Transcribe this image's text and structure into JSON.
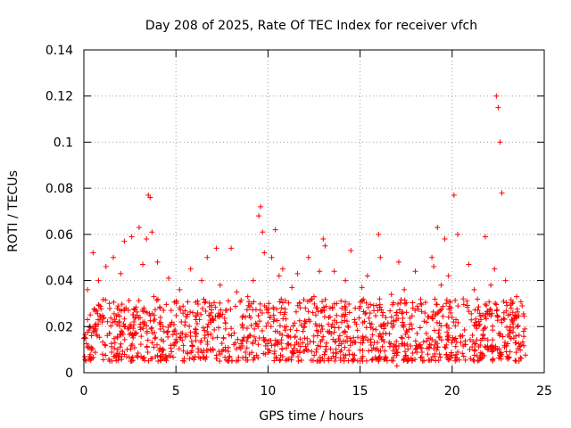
{
  "chart_data": {
    "type": "scatter",
    "title": "Day 208 of 2025, Rate Of TEC Index for receiver vfch",
    "xlabel": "GPS time / hours",
    "ylabel": "ROTI / TECUs",
    "xlim": [
      0,
      25
    ],
    "ylim": [
      0,
      0.14
    ],
    "xticks": [
      0,
      5,
      10,
      15,
      20,
      25
    ],
    "xtick_labels": [
      "0",
      "5",
      "10",
      "15",
      "20",
      "25"
    ],
    "yticks": [
      0,
      0.02,
      0.04,
      0.06,
      0.08,
      0.1,
      0.12,
      0.14
    ],
    "ytick_labels": [
      "0",
      "0.02",
      "0.04",
      "0.06",
      "0.08",
      "0.1",
      "0.12",
      "0.14"
    ],
    "grid": true,
    "marker": "+",
    "color": "#ff0000",
    "series": [
      {
        "name": "ROTI",
        "x": [
          0.1,
          0.2,
          0.3,
          0.5,
          0.6,
          0.8,
          1.0,
          1.2,
          1.4,
          1.6,
          1.8,
          2.0,
          2.2,
          2.4,
          2.6,
          2.8,
          3.0,
          3.2,
          3.3,
          3.4,
          3.5,
          3.6,
          3.65,
          3.7,
          3.8,
          4.0,
          4.3,
          4.6,
          4.9,
          5.2,
          5.5,
          5.8,
          6.1,
          6.4,
          6.7,
          7.0,
          7.2,
          7.4,
          7.7,
          8.0,
          8.3,
          8.6,
          8.9,
          9.2,
          9.5,
          9.6,
          9.7,
          9.8,
          10.0,
          10.2,
          10.4,
          10.6,
          10.8,
          11.0,
          11.3,
          11.6,
          11.9,
          12.2,
          12.5,
          12.8,
          13.0,
          13.1,
          13.3,
          13.6,
          13.9,
          14.2,
          14.5,
          14.8,
          15.1,
          15.4,
          15.7,
          16.0,
          16.1,
          16.4,
          16.7,
          17.0,
          17.1,
          17.4,
          17.7,
          18.0,
          18.3,
          18.6,
          18.9,
          19.0,
          19.2,
          19.4,
          19.6,
          19.8,
          20.0,
          20.1,
          20.3,
          20.6,
          20.9,
          21.2,
          21.5,
          21.8,
          22.1,
          22.3,
          22.4,
          22.5,
          22.6,
          22.7,
          22.9,
          23.2,
          23.5,
          23.8,
          23.95
        ],
        "y": [
          0.015,
          0.036,
          0.02,
          0.052,
          0.018,
          0.04,
          0.022,
          0.046,
          0.017,
          0.05,
          0.021,
          0.043,
          0.057,
          0.019,
          0.059,
          0.024,
          0.063,
          0.047,
          0.022,
          0.058,
          0.077,
          0.076,
          0.019,
          0.061,
          0.033,
          0.048,
          0.02,
          0.041,
          0.018,
          0.036,
          0.022,
          0.045,
          0.017,
          0.04,
          0.05,
          0.023,
          0.054,
          0.038,
          0.019,
          0.054,
          0.035,
          0.021,
          0.033,
          0.04,
          0.068,
          0.072,
          0.061,
          0.052,
          0.026,
          0.05,
          0.062,
          0.042,
          0.045,
          0.02,
          0.037,
          0.043,
          0.018,
          0.05,
          0.033,
          0.044,
          0.058,
          0.055,
          0.024,
          0.044,
          0.016,
          0.04,
          0.053,
          0.021,
          0.037,
          0.042,
          0.019,
          0.06,
          0.05,
          0.017,
          0.034,
          0.003,
          0.048,
          0.036,
          0.021,
          0.044,
          0.03,
          0.017,
          0.05,
          0.046,
          0.063,
          0.038,
          0.058,
          0.042,
          0.024,
          0.077,
          0.06,
          0.032,
          0.047,
          0.036,
          0.021,
          0.059,
          0.038,
          0.045,
          0.12,
          0.115,
          0.1,
          0.078,
          0.04,
          0.028,
          0.033,
          0.029,
          0.019
        ]
      }
    ],
    "noise_band": {
      "x_range": [
        0,
        24
      ],
      "y_range": [
        0.005,
        0.032
      ],
      "count": 1300
    }
  }
}
